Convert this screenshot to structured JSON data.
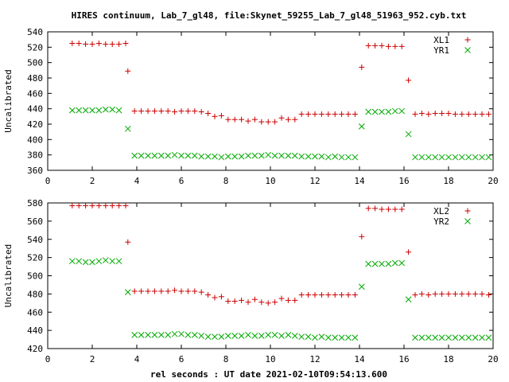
{
  "chart_data": [
    {
      "type": "scatter",
      "title": "HIRES continuum, Lab_7_gl48, file:Skynet_59255_Lab_7_gl48_51963_952.cyb.txt",
      "xlabel": "",
      "ylabel": "Uncalibrated",
      "xlim": [
        0,
        20
      ],
      "ylim": [
        360,
        540
      ],
      "xticks": [
        "0",
        "2",
        "4",
        "6",
        "8",
        "10",
        "12",
        "14",
        "16",
        "18",
        "20"
      ],
      "yticks": [
        "360",
        "380",
        "400",
        "420",
        "440",
        "460",
        "480",
        "500",
        "520",
        "540"
      ],
      "legend_position": "top-right",
      "grid": false,
      "series": [
        {
          "name": "XL1",
          "marker": "plus",
          "color": "#cc0000",
          "points": [
            [
              1.1,
              525
            ],
            [
              1.4,
              525
            ],
            [
              1.7,
              524
            ],
            [
              2.0,
              524
            ],
            [
              2.3,
              525
            ],
            [
              2.6,
              524
            ],
            [
              2.9,
              524
            ],
            [
              3.2,
              524
            ],
            [
              3.5,
              525
            ],
            [
              3.6,
              489
            ],
            [
              3.9,
              437
            ],
            [
              4.2,
              437
            ],
            [
              4.5,
              437
            ],
            [
              4.8,
              437
            ],
            [
              5.1,
              437
            ],
            [
              5.4,
              437
            ],
            [
              5.7,
              436
            ],
            [
              6.0,
              437
            ],
            [
              6.3,
              437
            ],
            [
              6.6,
              437
            ],
            [
              6.9,
              436
            ],
            [
              7.2,
              434
            ],
            [
              7.5,
              430
            ],
            [
              7.8,
              431
            ],
            [
              8.1,
              426
            ],
            [
              8.4,
              426
            ],
            [
              8.7,
              426
            ],
            [
              9.0,
              424
            ],
            [
              9.3,
              426
            ],
            [
              9.6,
              423
            ],
            [
              9.9,
              423
            ],
            [
              10.2,
              423
            ],
            [
              10.5,
              428
            ],
            [
              10.8,
              426
            ],
            [
              11.1,
              426
            ],
            [
              11.4,
              433
            ],
            [
              11.7,
              433
            ],
            [
              12.0,
              433
            ],
            [
              12.3,
              433
            ],
            [
              12.6,
              433
            ],
            [
              12.9,
              433
            ],
            [
              13.2,
              433
            ],
            [
              13.5,
              433
            ],
            [
              13.8,
              433
            ],
            [
              14.1,
              494
            ],
            [
              14.4,
              522
            ],
            [
              14.7,
              522
            ],
            [
              15.0,
              522
            ],
            [
              15.3,
              521
            ],
            [
              15.6,
              521
            ],
            [
              15.9,
              521
            ],
            [
              16.2,
              477
            ],
            [
              16.5,
              433
            ],
            [
              16.8,
              434
            ],
            [
              17.1,
              433
            ],
            [
              17.4,
              434
            ],
            [
              17.7,
              434
            ],
            [
              18.0,
              434
            ],
            [
              18.3,
              433
            ],
            [
              18.6,
              433
            ],
            [
              18.9,
              433
            ],
            [
              19.2,
              433
            ],
            [
              19.5,
              433
            ],
            [
              19.8,
              433
            ]
          ]
        },
        {
          "name": "YR1",
          "marker": "cross",
          "color": "#00aa00",
          "points": [
            [
              1.1,
              438
            ],
            [
              1.4,
              438
            ],
            [
              1.7,
              438
            ],
            [
              2.0,
              438
            ],
            [
              2.3,
              438
            ],
            [
              2.6,
              439
            ],
            [
              2.9,
              439
            ],
            [
              3.2,
              438
            ],
            [
              3.6,
              414
            ],
            [
              3.9,
              379
            ],
            [
              4.2,
              379
            ],
            [
              4.5,
              379
            ],
            [
              4.8,
              379
            ],
            [
              5.1,
              379
            ],
            [
              5.4,
              379
            ],
            [
              5.7,
              380
            ],
            [
              6.0,
              379
            ],
            [
              6.3,
              379
            ],
            [
              6.6,
              379
            ],
            [
              6.9,
              378
            ],
            [
              7.2,
              378
            ],
            [
              7.5,
              378
            ],
            [
              7.8,
              377
            ],
            [
              8.1,
              378
            ],
            [
              8.4,
              378
            ],
            [
              8.7,
              378
            ],
            [
              9.0,
              379
            ],
            [
              9.3,
              379
            ],
            [
              9.6,
              379
            ],
            [
              9.9,
              380
            ],
            [
              10.2,
              379
            ],
            [
              10.5,
              379
            ],
            [
              10.8,
              379
            ],
            [
              11.1,
              379
            ],
            [
              11.4,
              378
            ],
            [
              11.7,
              378
            ],
            [
              12.0,
              378
            ],
            [
              12.3,
              378
            ],
            [
              12.6,
              377
            ],
            [
              12.9,
              378
            ],
            [
              13.2,
              377
            ],
            [
              13.5,
              377
            ],
            [
              13.8,
              377
            ],
            [
              14.1,
              417
            ],
            [
              14.4,
              436
            ],
            [
              14.7,
              436
            ],
            [
              15.0,
              436
            ],
            [
              15.3,
              436
            ],
            [
              15.6,
              437
            ],
            [
              15.9,
              437
            ],
            [
              16.2,
              407
            ],
            [
              16.5,
              377
            ],
            [
              16.8,
              377
            ],
            [
              17.1,
              377
            ],
            [
              17.4,
              377
            ],
            [
              17.7,
              377
            ],
            [
              18.0,
              377
            ],
            [
              18.3,
              377
            ],
            [
              18.6,
              377
            ],
            [
              18.9,
              377
            ],
            [
              19.2,
              377
            ],
            [
              19.5,
              377
            ],
            [
              19.8,
              377
            ]
          ]
        }
      ]
    },
    {
      "type": "scatter",
      "title": "",
      "xlabel": "rel seconds : UT date 2021-02-10T09:54:13.600",
      "ylabel": "Uncalibrated",
      "xlim": [
        0,
        20
      ],
      "ylim": [
        420,
        580
      ],
      "xticks": [
        "0",
        "2",
        "4",
        "6",
        "8",
        "10",
        "12",
        "14",
        "16",
        "18",
        "20"
      ],
      "yticks": [
        "420",
        "440",
        "460",
        "480",
        "500",
        "520",
        "540",
        "560",
        "580"
      ],
      "legend_position": "top-right",
      "grid": false,
      "series": [
        {
          "name": "XL2",
          "marker": "plus",
          "color": "#cc0000",
          "points": [
            [
              1.1,
              577
            ],
            [
              1.4,
              577
            ],
            [
              1.7,
              577
            ],
            [
              2.0,
              577
            ],
            [
              2.3,
              577
            ],
            [
              2.6,
              577
            ],
            [
              2.9,
              577
            ],
            [
              3.2,
              577
            ],
            [
              3.5,
              577
            ],
            [
              3.6,
              537
            ],
            [
              3.9,
              483
            ],
            [
              4.2,
              483
            ],
            [
              4.5,
              483
            ],
            [
              4.8,
              483
            ],
            [
              5.1,
              483
            ],
            [
              5.4,
              483
            ],
            [
              5.7,
              484
            ],
            [
              6.0,
              483
            ],
            [
              6.3,
              483
            ],
            [
              6.6,
              483
            ],
            [
              6.9,
              482
            ],
            [
              7.2,
              479
            ],
            [
              7.5,
              476
            ],
            [
              7.8,
              477
            ],
            [
              8.1,
              472
            ],
            [
              8.4,
              472
            ],
            [
              8.7,
              473
            ],
            [
              9.0,
              471
            ],
            [
              9.3,
              474
            ],
            [
              9.6,
              471
            ],
            [
              9.9,
              470
            ],
            [
              10.2,
              471
            ],
            [
              10.5,
              475
            ],
            [
              10.8,
              473
            ],
            [
              11.1,
              473
            ],
            [
              11.4,
              479
            ],
            [
              11.7,
              479
            ],
            [
              12.0,
              479
            ],
            [
              12.3,
              479
            ],
            [
              12.6,
              479
            ],
            [
              12.9,
              479
            ],
            [
              13.2,
              479
            ],
            [
              13.5,
              479
            ],
            [
              13.8,
              479
            ],
            [
              14.1,
              543
            ],
            [
              14.4,
              574
            ],
            [
              14.7,
              574
            ],
            [
              15.0,
              573
            ],
            [
              15.3,
              573
            ],
            [
              15.6,
              573
            ],
            [
              15.9,
              573
            ],
            [
              16.2,
              526
            ],
            [
              16.5,
              479
            ],
            [
              16.8,
              480
            ],
            [
              17.1,
              479
            ],
            [
              17.4,
              480
            ],
            [
              17.7,
              480
            ],
            [
              18.0,
              480
            ],
            [
              18.3,
              480
            ],
            [
              18.6,
              480
            ],
            [
              18.9,
              480
            ],
            [
              19.2,
              480
            ],
            [
              19.5,
              480
            ],
            [
              19.8,
              479
            ]
          ]
        },
        {
          "name": "YR2",
          "marker": "cross",
          "color": "#00aa00",
          "points": [
            [
              1.1,
              516
            ],
            [
              1.4,
              516
            ],
            [
              1.7,
              515
            ],
            [
              2.0,
              515
            ],
            [
              2.3,
              516
            ],
            [
              2.6,
              517
            ],
            [
              2.9,
              516
            ],
            [
              3.2,
              516
            ],
            [
              3.6,
              482
            ],
            [
              3.9,
              435
            ],
            [
              4.2,
              435
            ],
            [
              4.5,
              435
            ],
            [
              4.8,
              435
            ],
            [
              5.1,
              435
            ],
            [
              5.4,
              435
            ],
            [
              5.7,
              436
            ],
            [
              6.0,
              436
            ],
            [
              6.3,
              435
            ],
            [
              6.6,
              435
            ],
            [
              6.9,
              434
            ],
            [
              7.2,
              433
            ],
            [
              7.5,
              433
            ],
            [
              7.8,
              433
            ],
            [
              8.1,
              434
            ],
            [
              8.4,
              434
            ],
            [
              8.7,
              434
            ],
            [
              9.0,
              435
            ],
            [
              9.3,
              434
            ],
            [
              9.6,
              434
            ],
            [
              9.9,
              435
            ],
            [
              10.2,
              435
            ],
            [
              10.5,
              434
            ],
            [
              10.8,
              435
            ],
            [
              11.1,
              434
            ],
            [
              11.4,
              433
            ],
            [
              11.7,
              433
            ],
            [
              12.0,
              432
            ],
            [
              12.3,
              433
            ],
            [
              12.6,
              432
            ],
            [
              12.9,
              432
            ],
            [
              13.2,
              432
            ],
            [
              13.5,
              432
            ],
            [
              13.8,
              432
            ],
            [
              14.1,
              488
            ],
            [
              14.4,
              513
            ],
            [
              14.7,
              513
            ],
            [
              15.0,
              513
            ],
            [
              15.3,
              513
            ],
            [
              15.6,
              514
            ],
            [
              15.9,
              514
            ],
            [
              16.2,
              474
            ],
            [
              16.5,
              432
            ],
            [
              16.8,
              432
            ],
            [
              17.1,
              432
            ],
            [
              17.4,
              432
            ],
            [
              17.7,
              432
            ],
            [
              18.0,
              432
            ],
            [
              18.3,
              432
            ],
            [
              18.6,
              432
            ],
            [
              18.9,
              432
            ],
            [
              19.2,
              432
            ],
            [
              19.5,
              432
            ],
            [
              19.8,
              432
            ]
          ]
        }
      ]
    }
  ]
}
